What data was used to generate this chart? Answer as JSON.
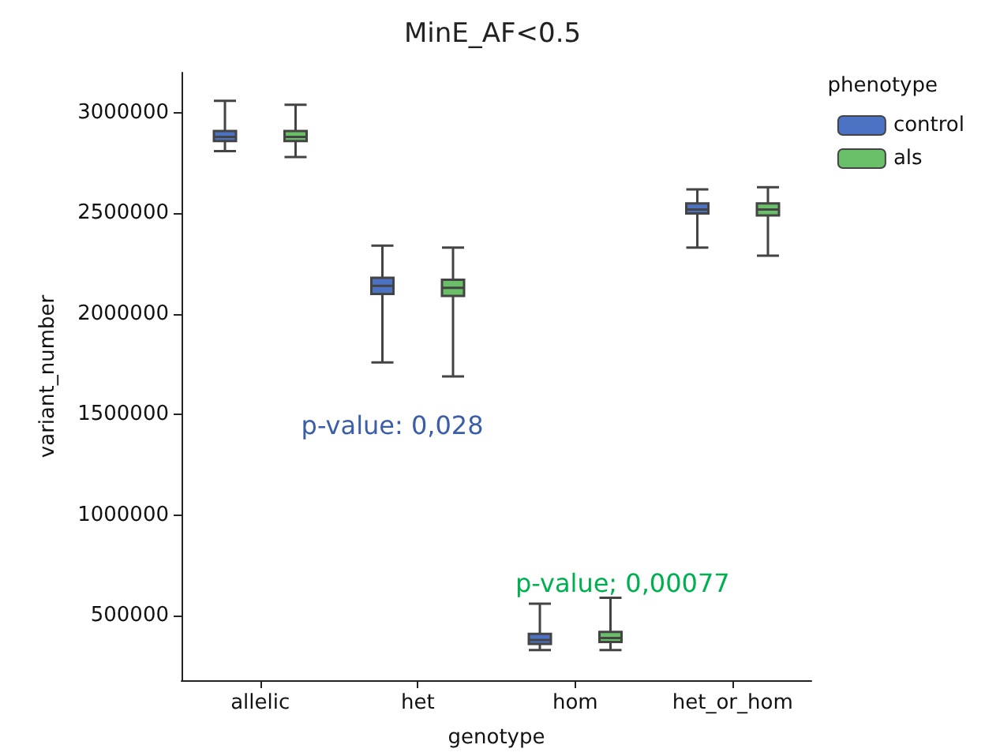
{
  "chart_data": {
    "type": "box",
    "title": "MinE_AF<0.5",
    "xlabel": "genotype",
    "ylabel": "variant_number",
    "legend_title": "phenotype",
    "legend": "top right",
    "grid": false,
    "categories": [
      "allelic",
      "het",
      "hom",
      "het_or_hom"
    ],
    "ylim": [
      180000,
      3200000
    ],
    "yticks": [
      500000,
      1000000,
      1500000,
      2000000,
      2500000,
      3000000
    ],
    "series": [
      {
        "name": "control",
        "color": "#4c72c4",
        "boxes": [
          {
            "low": 2810000,
            "q1": 2860000,
            "median": 2880000,
            "q3": 2910000,
            "high": 3060000
          },
          {
            "low": 1760000,
            "q1": 2100000,
            "median": 2140000,
            "q3": 2180000,
            "high": 2340000
          },
          {
            "low": 330000,
            "q1": 360000,
            "median": 380000,
            "q3": 410000,
            "high": 560000
          },
          {
            "low": 2330000,
            "q1": 2500000,
            "median": 2520000,
            "q3": 2550000,
            "high": 2620000
          }
        ]
      },
      {
        "name": "als",
        "color": "#6abf69",
        "boxes": [
          {
            "low": 2780000,
            "q1": 2860000,
            "median": 2880000,
            "q3": 2910000,
            "high": 3040000
          },
          {
            "low": 1690000,
            "q1": 2090000,
            "median": 2130000,
            "q3": 2170000,
            "high": 2330000
          },
          {
            "low": 330000,
            "q1": 370000,
            "median": 390000,
            "q3": 420000,
            "high": 590000
          },
          {
            "low": 2290000,
            "q1": 2490000,
            "median": 2520000,
            "q3": 2550000,
            "high": 2630000
          }
        ]
      }
    ],
    "annotations": [
      "p-value: 0,028",
      "p-value; 0,00077"
    ]
  }
}
